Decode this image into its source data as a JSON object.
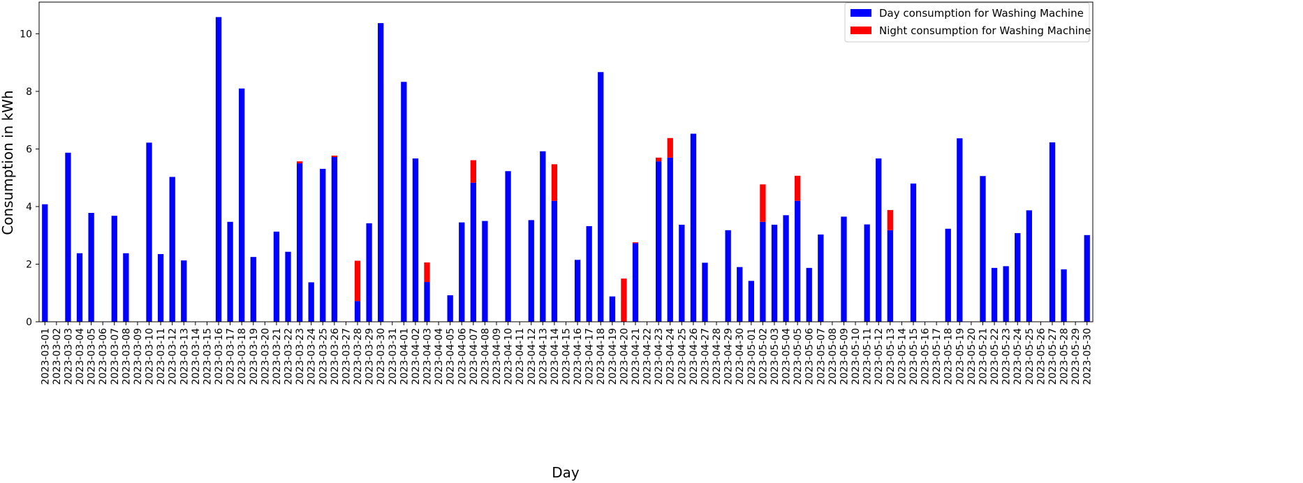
{
  "chart_data": {
    "type": "bar",
    "stacked": true,
    "xlabel": "Day",
    "ylabel": "Consumption in kWh",
    "ylim": [
      0,
      11.1
    ],
    "yticks": [
      0,
      2,
      4,
      6,
      8,
      10
    ],
    "legend_position": "top-right",
    "grid": false,
    "categories": [
      "2023-03-01",
      "2023-03-02",
      "2023-03-03",
      "2023-03-04",
      "2023-03-05",
      "2023-03-06",
      "2023-03-07",
      "2023-03-08",
      "2023-03-09",
      "2023-03-10",
      "2023-03-11",
      "2023-03-12",
      "2023-03-13",
      "2023-03-14",
      "2023-03-15",
      "2023-03-16",
      "2023-03-17",
      "2023-03-18",
      "2023-03-19",
      "2023-03-20",
      "2023-03-21",
      "2023-03-22",
      "2023-03-23",
      "2023-03-24",
      "2023-03-25",
      "2023-03-26",
      "2023-03-27",
      "2023-03-28",
      "2023-03-29",
      "2023-03-30",
      "2023-03-31",
      "2023-04-01",
      "2023-04-02",
      "2023-04-03",
      "2023-04-04",
      "2023-04-05",
      "2023-04-06",
      "2023-04-07",
      "2023-04-08",
      "2023-04-09",
      "2023-04-10",
      "2023-04-11",
      "2023-04-12",
      "2023-04-13",
      "2023-04-14",
      "2023-04-15",
      "2023-04-16",
      "2023-04-17",
      "2023-04-18",
      "2023-04-19",
      "2023-04-20",
      "2023-04-21",
      "2023-04-22",
      "2023-04-23",
      "2023-04-24",
      "2023-04-25",
      "2023-04-26",
      "2023-04-27",
      "2023-04-28",
      "2023-04-29",
      "2023-04-30",
      "2023-05-01",
      "2023-05-02",
      "2023-05-03",
      "2023-05-04",
      "2023-05-05",
      "2023-05-06",
      "2023-05-07",
      "2023-05-08",
      "2023-05-09",
      "2023-05-10",
      "2023-05-11",
      "2023-05-12",
      "2023-05-13",
      "2023-05-14",
      "2023-05-15",
      "2023-05-16",
      "2023-05-17",
      "2023-05-18",
      "2023-05-19",
      "2023-05-20",
      "2023-05-21",
      "2023-05-22",
      "2023-05-23",
      "2023-05-24",
      "2023-05-25",
      "2023-05-26",
      "2023-05-27",
      "2023-05-28",
      "2023-05-29",
      "2023-05-30"
    ],
    "series": [
      {
        "name": "Day consumption for Washing Machine",
        "color": "#0000ff",
        "values": [
          4.08,
          0,
          5.87,
          2.38,
          3.78,
          0,
          3.68,
          2.38,
          0,
          6.22,
          2.35,
          5.03,
          2.13,
          0,
          0,
          10.58,
          3.47,
          8.1,
          2.25,
          0,
          3.13,
          2.43,
          5.5,
          1.37,
          5.31,
          5.72,
          0,
          0.72,
          3.42,
          10.37,
          0,
          8.33,
          5.67,
          1.38,
          0,
          0.92,
          3.45,
          4.83,
          3.5,
          0,
          5.23,
          0,
          3.53,
          5.92,
          4.2,
          0,
          2.15,
          3.32,
          8.67,
          0.88,
          0,
          2.73,
          0,
          5.57,
          5.7,
          3.37,
          6.53,
          2.05,
          0,
          3.18,
          1.9,
          1.42,
          3.47,
          3.37,
          3.7,
          4.2,
          1.87,
          3.03,
          0,
          3.65,
          0,
          3.38,
          5.67,
          3.18,
          0,
          4.8,
          0,
          0,
          3.23,
          6.37,
          0,
          5.06,
          1.87,
          1.93,
          3.08,
          3.87,
          0,
          6.23,
          1.82,
          0,
          3.01
        ]
      },
      {
        "name": "Night consumption for Washing Machine",
        "color": "#ff0000",
        "values": [
          0,
          0,
          0,
          0,
          0,
          0,
          0,
          0,
          0,
          0,
          0,
          0,
          0,
          0,
          0,
          0,
          0,
          0,
          0,
          0,
          0,
          0,
          0.07,
          0,
          0,
          0.05,
          0,
          1.4,
          0,
          0,
          0,
          0,
          0,
          0.68,
          0,
          0,
          0,
          0.78,
          0,
          0,
          0,
          0,
          0,
          0,
          1.27,
          0,
          0,
          0,
          0,
          0,
          1.5,
          0.03,
          0,
          0.13,
          0.68,
          0,
          0,
          0,
          0,
          0,
          0,
          0,
          1.3,
          0,
          0,
          0.87,
          0,
          0,
          0,
          0,
          0,
          0,
          0,
          0.7,
          0,
          0,
          0,
          0,
          0,
          0,
          0,
          0,
          0,
          0,
          0,
          0,
          0,
          0,
          0,
          0,
          0
        ]
      }
    ]
  }
}
